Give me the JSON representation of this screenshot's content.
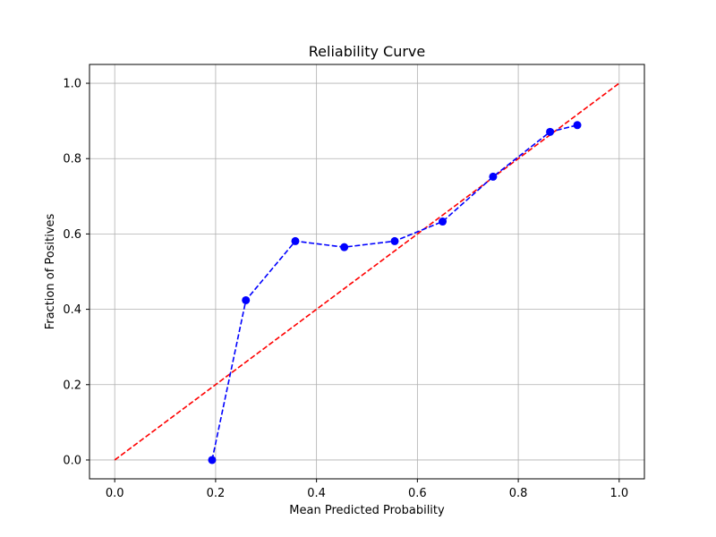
{
  "chart_data": {
    "type": "line",
    "title": "Reliability Curve",
    "xlabel": "Mean Predicted Probability",
    "ylabel": "Fraction of Positives",
    "xlim": [
      -0.05,
      1.05
    ],
    "ylim": [
      -0.05,
      1.05
    ],
    "xticks": [
      0.0,
      0.2,
      0.4,
      0.6,
      0.8,
      1.0
    ],
    "yticks": [
      0.0,
      0.2,
      0.4,
      0.6,
      0.8,
      1.0
    ],
    "xtick_labels": [
      "0.0",
      "0.2",
      "0.4",
      "0.6",
      "0.8",
      "1.0"
    ],
    "ytick_labels": [
      "0.0",
      "0.2",
      "0.4",
      "0.6",
      "0.8",
      "1.0"
    ],
    "grid": true,
    "series": [
      {
        "style": "dashed line with circle markers",
        "color": "#0000ff",
        "x": [
          0.193,
          0.26,
          0.358,
          0.455,
          0.555,
          0.65,
          0.75,
          0.863,
          0.917
        ],
        "y": [
          0.0,
          0.424,
          0.581,
          0.565,
          0.581,
          0.633,
          0.752,
          0.871,
          0.889
        ]
      },
      {
        "style": "dashed line",
        "color": "#ff0000",
        "x": [
          0.0,
          1.0
        ],
        "y": [
          0.0,
          1.0
        ]
      }
    ]
  }
}
